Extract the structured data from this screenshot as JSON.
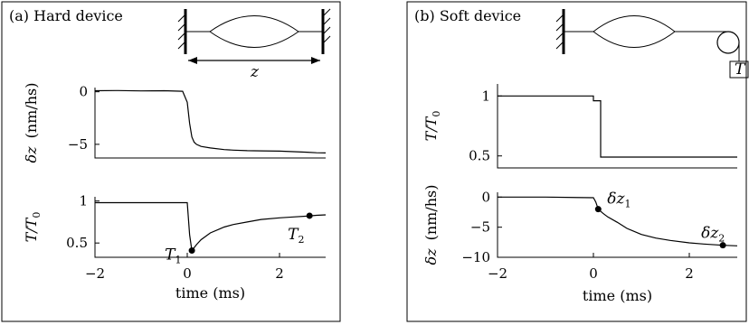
{
  "chart_data": [
    {
      "type": "line",
      "panel": "a",
      "title": "(a) Hard device",
      "schematic": {
        "distance_label": "z"
      },
      "xlabel": "time (ms)",
      "xlim": [
        -2,
        3
      ],
      "x_ticks": [
        {
          "value": -2,
          "label": "−2"
        },
        {
          "value": 0,
          "label": "0"
        },
        {
          "value": 2,
          "label": "2"
        }
      ],
      "subplots": [
        {
          "id": "a_top",
          "ylabel_main": "δz",
          "ylabel_unit": "(nm/hs)",
          "ylim": [
            -6.3,
            0.4
          ],
          "y_ticks": [
            {
              "value": 0,
              "label": "0"
            },
            {
              "value": -5,
              "label": "−5"
            }
          ],
          "x": [
            -2,
            -1.5,
            -1,
            -0.5,
            -0.1,
            0,
            0.05,
            0.1,
            0.15,
            0.2,
            0.3,
            0.5,
            0.8,
            1.0,
            1.3,
            1.6,
            2.0,
            2.3,
            2.6,
            2.8,
            3.0
          ],
          "y": [
            0.1,
            0.12,
            0.08,
            0.1,
            0.05,
            -1.0,
            -3.0,
            -4.3,
            -4.8,
            -5.0,
            -5.2,
            -5.35,
            -5.5,
            -5.55,
            -5.6,
            -5.62,
            -5.65,
            -5.7,
            -5.75,
            -5.8,
            -5.82
          ]
        },
        {
          "id": "a_bottom",
          "ylabel_main": "T/T",
          "ylabel_sub": "0",
          "ylim": [
            0.33,
            1.05
          ],
          "y_ticks": [
            {
              "value": 1,
              "label": "1"
            },
            {
              "value": 0.5,
              "label": "0.5"
            }
          ],
          "x": [
            -2,
            -1,
            0,
            0.05,
            0.1,
            0.2,
            0.3,
            0.5,
            0.8,
            1.0,
            1.3,
            1.6,
            2.0,
            2.3,
            2.6,
            2.8,
            3.0
          ],
          "y": [
            0.98,
            0.98,
            0.98,
            0.6,
            0.41,
            0.48,
            0.54,
            0.62,
            0.69,
            0.72,
            0.75,
            0.78,
            0.8,
            0.81,
            0.82,
            0.83,
            0.835
          ],
          "markers": [
            {
              "name": "T",
              "sub": "1",
              "x": 0.1,
              "y": 0.41,
              "label_pos": "left-below"
            },
            {
              "name": "T",
              "sub": "2",
              "x": 2.65,
              "y": 0.825,
              "label_pos": "below"
            }
          ]
        }
      ]
    },
    {
      "type": "line",
      "panel": "b",
      "title": "(b) Soft device",
      "schematic": {
        "load_label": "T"
      },
      "xlabel": "time (ms)",
      "xlim": [
        -2,
        3
      ],
      "x_ticks": [
        {
          "value": -2,
          "label": "−2"
        },
        {
          "value": 0,
          "label": "0"
        },
        {
          "value": 2,
          "label": "2"
        }
      ],
      "subplots": [
        {
          "id": "b_top",
          "ylabel_main": "T/T",
          "ylabel_sub": "0",
          "ylim": [
            0.4,
            1.1
          ],
          "y_ticks": [
            {
              "value": 1,
              "label": "1"
            },
            {
              "value": 0.5,
              "label": "0.5"
            }
          ],
          "x": [
            -2,
            0,
            0.0,
            0.15,
            0.15,
            0.2,
            3.0
          ],
          "y": [
            1.0,
            1.0,
            0.96,
            0.96,
            0.49,
            0.49,
            0.49
          ]
        },
        {
          "id": "b_bottom",
          "ylabel_main": "δz",
          "ylabel_unit": "(nm/hs)",
          "ylim": [
            -10,
            0.8
          ],
          "y_ticks": [
            {
              "value": 0,
              "label": "0"
            },
            {
              "value": -5,
              "label": "−5"
            },
            {
              "value": -10,
              "label": "−10"
            }
          ],
          "x": [
            -2,
            -1,
            0,
            0.05,
            0.1,
            0.2,
            0.3,
            0.5,
            0.7,
            1.0,
            1.3,
            1.6,
            2.0,
            2.3,
            2.7,
            3.0
          ],
          "y": [
            0,
            0,
            -0.1,
            -0.8,
            -2.0,
            -2.7,
            -3.3,
            -4.2,
            -5.2,
            -6.2,
            -6.8,
            -7.2,
            -7.6,
            -7.8,
            -8.0,
            -8.1
          ],
          "markers": [
            {
              "name": "δz",
              "sub": "1",
              "x": 0.1,
              "y": -2.0,
              "label_pos": "right-above"
            },
            {
              "name": "δz",
              "sub": "2",
              "x": 2.7,
              "y": -8.0,
              "label_pos": "above"
            }
          ]
        }
      ]
    }
  ]
}
